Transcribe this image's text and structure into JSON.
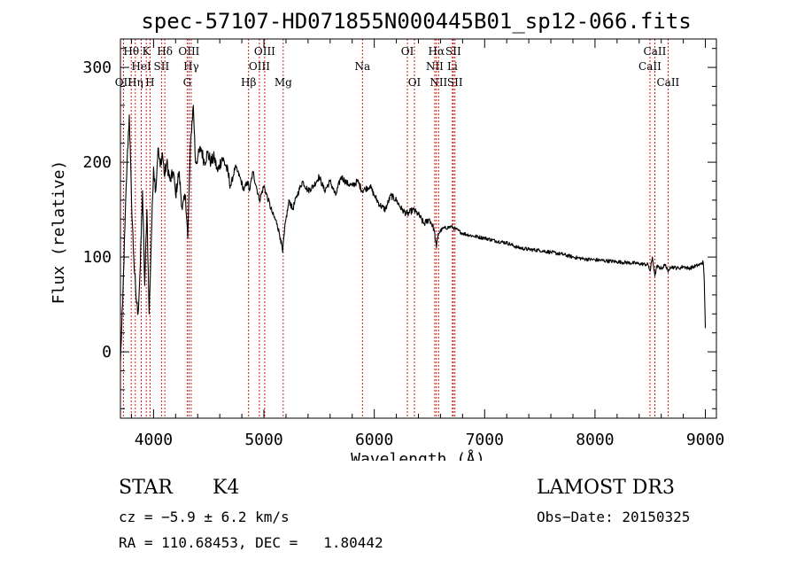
{
  "chart_data": {
    "type": "line",
    "title": "spec-57107-HD071855N000445B01_sp12-066.fits",
    "xlabel": "Wavelength (Å)",
    "ylabel": "Flux (relative)",
    "xlim": [
      3700,
      9100
    ],
    "ylim": [
      -70,
      330
    ],
    "xticks": [
      4000,
      5000,
      6000,
      7000,
      8000,
      9000
    ],
    "xtick_labels": [
      "4000",
      "5000",
      "6000",
      "7000",
      "8000",
      "9000"
    ],
    "yticks": [
      0,
      100,
      200,
      300
    ],
    "ytick_labels": [
      "0",
      "100",
      "200",
      "300"
    ],
    "line_color": "#000000",
    "marker_color": "#cc0000",
    "spectrum": {
      "x": [
        3700,
        3720,
        3740,
        3760,
        3780,
        3800,
        3820,
        3840,
        3860,
        3880,
        3900,
        3920,
        3940,
        3960,
        3980,
        4000,
        4020,
        4040,
        4060,
        4080,
        4100,
        4120,
        4150,
        4180,
        4200,
        4230,
        4260,
        4290,
        4310,
        4330,
        4340,
        4360,
        4380,
        4400,
        4430,
        4460,
        4490,
        4520,
        4550,
        4580,
        4620,
        4660,
        4700,
        4740,
        4780,
        4820,
        4850,
        4870,
        4900,
        4930,
        4960,
        5000,
        5040,
        5080,
        5120,
        5150,
        5170,
        5185,
        5200,
        5230,
        5260,
        5300,
        5350,
        5400,
        5450,
        5500,
        5550,
        5600,
        5650,
        5700,
        5750,
        5800,
        5850,
        5890,
        5920,
        5960,
        6000,
        6050,
        6100,
        6150,
        6200,
        6250,
        6300,
        6350,
        6400,
        6450,
        6500,
        6540,
        6563,
        6580,
        6620,
        6700,
        6800,
        6900,
        7000,
        7100,
        7200,
        7300,
        7400,
        7500,
        7600,
        7700,
        7800,
        7900,
        8000,
        8100,
        8200,
        8300,
        8400,
        8480,
        8500,
        8520,
        8542,
        8560,
        8600,
        8640,
        8662,
        8680,
        8720,
        8760,
        8800,
        8850,
        8900,
        8950,
        8980,
        8990,
        9000
      ],
      "y": [
        -10,
        50,
        130,
        200,
        250,
        160,
        100,
        60,
        40,
        90,
        170,
        70,
        150,
        40,
        120,
        195,
        170,
        215,
        195,
        210,
        185,
        200,
        180,
        190,
        165,
        190,
        150,
        165,
        120,
        200,
        230,
        260,
        200,
        205,
        215,
        200,
        210,
        200,
        205,
        190,
        205,
        195,
        175,
        195,
        185,
        170,
        180,
        170,
        190,
        175,
        160,
        175,
        160,
        145,
        135,
        120,
        105,
        125,
        140,
        160,
        150,
        165,
        180,
        170,
        175,
        185,
        170,
        180,
        165,
        185,
        178,
        175,
        180,
        170,
        172,
        175,
        165,
        155,
        150,
        165,
        160,
        150,
        145,
        150,
        145,
        135,
        140,
        130,
        110,
        125,
        130,
        132,
        125,
        122,
        120,
        117,
        115,
        110,
        108,
        107,
        105,
        103,
        100,
        98,
        97,
        96,
        95,
        94,
        93,
        92,
        85,
        100,
        80,
        90,
        88,
        92,
        84,
        90,
        89,
        88,
        90,
        88,
        90,
        92,
        95,
        75,
        25
      ]
    },
    "lines": [
      {
        "label": "OII",
        "wl": 3727,
        "row": 3
      },
      {
        "label": "Hθ",
        "wl": 3798,
        "row": 1
      },
      {
        "label": "Hη",
        "wl": 3835,
        "row": 3
      },
      {
        "label": "HeI",
        "wl": 3889,
        "row": 2
      },
      {
        "label": "K",
        "wl": 3934,
        "row": 1
      },
      {
        "label": "H",
        "wl": 3968,
        "row": 3
      },
      {
        "label": "SII",
        "wl": 4072,
        "row": 2
      },
      {
        "label": "Hδ",
        "wl": 4102,
        "row": 1
      },
      {
        "label": "G",
        "wl": 4305,
        "row": 3
      },
      {
        "label": "OIII",
        "wl": 4321,
        "row": 1
      },
      {
        "label": "Hγ",
        "wl": 4341,
        "row": 2
      },
      {
        "label": "Hβ",
        "wl": 4861,
        "row": 3
      },
      {
        "label": "OIII",
        "wl": 4959,
        "row": 2
      },
      {
        "label": "OIII",
        "wl": 5007,
        "row": 1
      },
      {
        "label": "Mg",
        "wl": 5175,
        "row": 3
      },
      {
        "label": "Na",
        "wl": 5893,
        "row": 2
      },
      {
        "label": "OI",
        "wl": 6300,
        "row": 1
      },
      {
        "label": "OI",
        "wl": 6364,
        "row": 3
      },
      {
        "label": "NII",
        "wl": 6548,
        "row": 2
      },
      {
        "label": "Hα",
        "wl": 6563,
        "row": 1
      },
      {
        "label": "NII",
        "wl": 6583,
        "row": 3
      },
      {
        "label": "Li",
        "wl": 6708,
        "row": 2
      },
      {
        "label": "SII",
        "wl": 6716,
        "row": 1
      },
      {
        "label": "SII",
        "wl": 6731,
        "row": 3
      },
      {
        "label": "CaII",
        "wl": 8498,
        "row": 2
      },
      {
        "label": "CaII",
        "wl": 8542,
        "row": 1
      },
      {
        "label": "CaII",
        "wl": 8662,
        "row": 3
      }
    ]
  },
  "info": {
    "object_type": "STAR",
    "subclass": "K4",
    "survey": "LAMOST DR3",
    "cz": "cz = −5.9 ± 6.2 km/s",
    "obs_date": "Obs−Date: 20150325",
    "coords": "RA = 110.68453, DEC =   1.80442"
  }
}
